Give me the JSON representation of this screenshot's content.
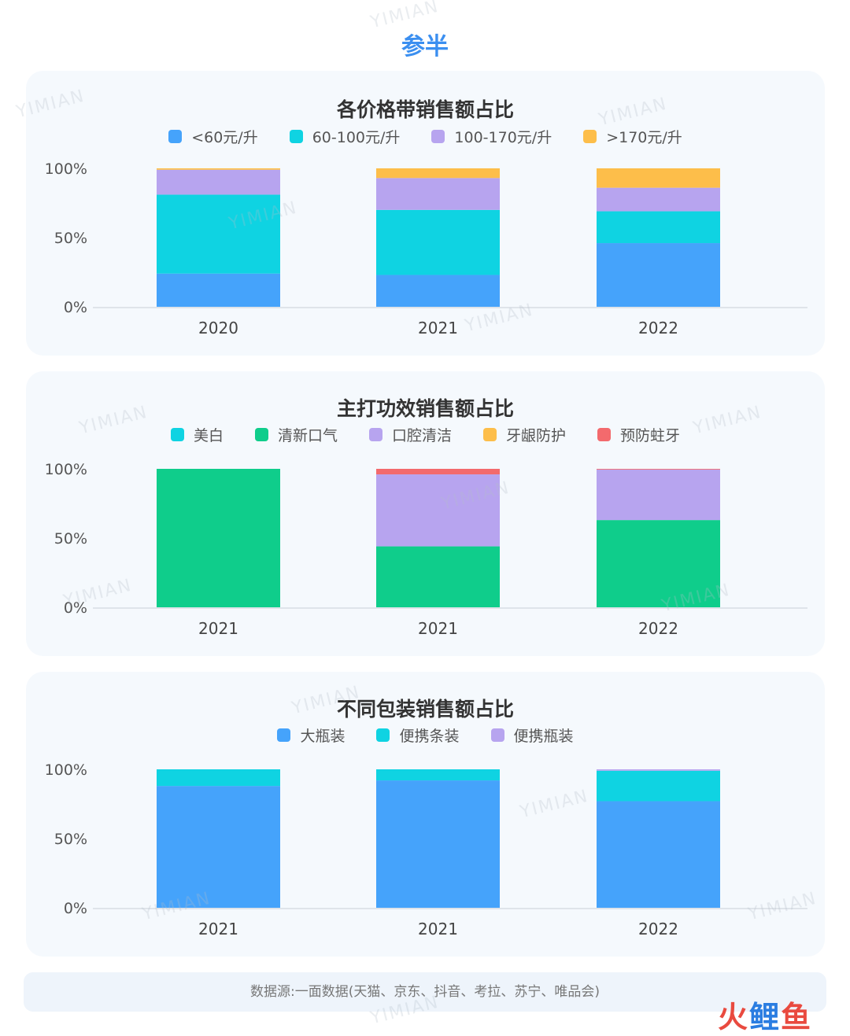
{
  "page": {
    "title": "参半",
    "source": "数据源:一面数据(天猫、京东、抖音、考拉、苏宁、唯品会)"
  },
  "logo": {
    "chars": [
      "火",
      "鲤",
      "鱼"
    ]
  },
  "watermark_text": "YIMIAN",
  "colors": {
    "blue": "#45a3fb",
    "cyan": "#0fd3e2",
    "purple": "#b7a4ef",
    "orange": "#fdbe4a",
    "green": "#0fcd8b",
    "red": "#f36a6d"
  },
  "chart_data": [
    {
      "type": "bar",
      "stacked": true,
      "title": "各价格带销售额占比",
      "categories": [
        "2020",
        "2021",
        "2022"
      ],
      "ylim": [
        0,
        100
      ],
      "yticks": [
        "0%",
        "50%",
        "100%"
      ],
      "grid": false,
      "legend_position": "top-center",
      "series": [
        {
          "name": "<60元/升",
          "color": "#45a3fb",
          "values": [
            24,
            23,
            46
          ]
        },
        {
          "name": "60-100元/升",
          "color": "#0fd3e2",
          "values": [
            57,
            47,
            23
          ]
        },
        {
          "name": "100-170元/升",
          "color": "#b7a4ef",
          "values": [
            18,
            23,
            17
          ]
        },
        {
          "name": ">170元/升",
          "color": "#fdbe4a",
          "values": [
            1,
            7,
            14
          ]
        }
      ]
    },
    {
      "type": "bar",
      "stacked": true,
      "title": "主打功效销售额占比",
      "categories": [
        "2021",
        "2021",
        "2022"
      ],
      "ylim": [
        0,
        100
      ],
      "yticks": [
        "0%",
        "50%",
        "100%"
      ],
      "grid": false,
      "legend_position": "top-center",
      "series": [
        {
          "name": "美白",
          "color": "#0fd3e2",
          "values": [
            0,
            0,
            0
          ]
        },
        {
          "name": "清新口气",
          "color": "#0fcd8b",
          "values": [
            100,
            44,
            63
          ]
        },
        {
          "name": "口腔清洁",
          "color": "#b7a4ef",
          "values": [
            0,
            52,
            36.5
          ]
        },
        {
          "name": "牙龈防护",
          "color": "#fdbe4a",
          "values": [
            0,
            0,
            0
          ]
        },
        {
          "name": "预防蛀牙",
          "color": "#f36a6d",
          "values": [
            0,
            4,
            0.5
          ]
        }
      ]
    },
    {
      "type": "bar",
      "stacked": true,
      "title": "不同包装销售额占比",
      "categories": [
        "2021",
        "2021",
        "2022"
      ],
      "ylim": [
        0,
        100
      ],
      "yticks": [
        "0%",
        "50%",
        "100%"
      ],
      "grid": false,
      "legend_position": "top-center",
      "series": [
        {
          "name": "大瓶装",
          "color": "#45a3fb",
          "values": [
            88,
            92,
            77
          ]
        },
        {
          "name": "便携条装",
          "color": "#0fd3e2",
          "values": [
            12,
            8,
            22
          ]
        },
        {
          "name": "便携瓶装",
          "color": "#b7a4ef",
          "values": [
            0,
            0,
            1
          ]
        }
      ]
    }
  ]
}
